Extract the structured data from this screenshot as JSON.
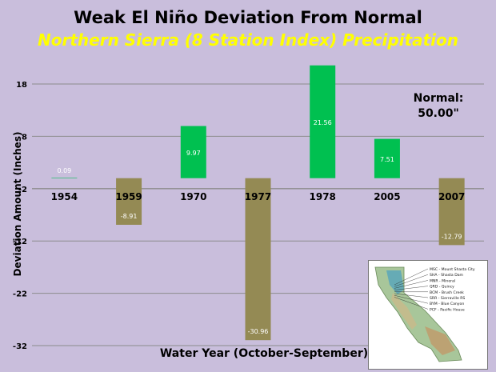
{
  "chart_data": {
    "type": "bar",
    "title": "Weak El Niño Deviation From Normal",
    "subtitle": "Northern Sierra (8 Station Index) Precipitation",
    "xlabel": "Water Year (October-September)",
    "ylabel": "Deviation Amount (Inches)",
    "categories": [
      "1954",
      "1959",
      "1970",
      "1977",
      "1978",
      "2005",
      "2007"
    ],
    "values": [
      0.09,
      -8.91,
      9.97,
      -30.96,
      21.56,
      7.51,
      -12.79
    ],
    "data_labels": [
      "0.09",
      "-8.91",
      "9.97",
      "-30.96",
      "21.56",
      "7.51",
      "-12.79"
    ],
    "yticks": [
      18,
      8,
      -2,
      -12,
      -22,
      -32
    ],
    "ylim": [
      -32,
      28
    ],
    "annotation": {
      "line1": "Normal:",
      "line2": "50.00\""
    },
    "colors": {
      "positive": "#00c050",
      "negative": "#948a54",
      "grid": "#8c8c8c",
      "positive_label": "#ffffff",
      "negative_label": "#ffffff"
    },
    "grid": true
  },
  "inset_map": {
    "stations": [
      "MSC - Mount Shasta City",
      "SHA - Shasta Dam",
      "MNR - Mineral",
      "QRD - Quincy",
      "BCM - Brush Creek",
      "SRR - Sierraville RS",
      "BYM - Blue Canyon",
      "PCF - Pacific House"
    ]
  }
}
